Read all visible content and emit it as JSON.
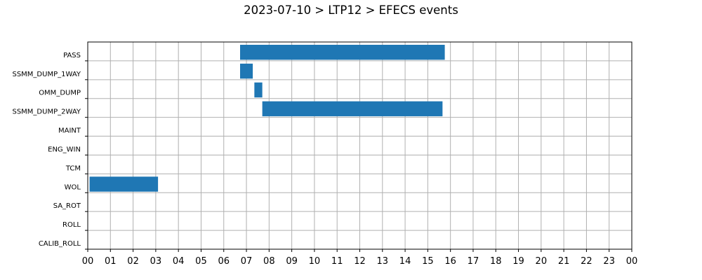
{
  "chart_data": {
    "type": "bar",
    "orientation": "horizontal-timeline",
    "title": "2023-07-10 > LTP12 > EFECS events",
    "categories": [
      "PASS",
      "SSMM_DUMP_1WAY",
      "OMM_DUMP",
      "SSMM_DUMP_2WAY",
      "MAINT",
      "ENG_WIN",
      "TCM",
      "WOL",
      "SA_ROT",
      "ROLL",
      "CALIB_ROLL"
    ],
    "x_ticks": [
      "00",
      "01",
      "02",
      "03",
      "04",
      "05",
      "06",
      "07",
      "08",
      "09",
      "10",
      "11",
      "12",
      "13",
      "14",
      "15",
      "16",
      "17",
      "18",
      "19",
      "20",
      "21",
      "22",
      "23",
      "00"
    ],
    "xlim_hours": [
      0,
      24
    ],
    "grid": true,
    "bar_color": "#1f77b4",
    "series": [
      {
        "events": [
          {
            "category": "PASS",
            "start_hour": 6.72,
            "end_hour": 15.75
          },
          {
            "category": "SSMM_DUMP_1WAY",
            "start_hour": 6.72,
            "end_hour": 7.28
          },
          {
            "category": "OMM_DUMP",
            "start_hour": 7.35,
            "end_hour": 7.7
          },
          {
            "category": "SSMM_DUMP_2WAY",
            "start_hour": 7.7,
            "end_hour": 15.65
          },
          {
            "category": "WOL",
            "start_hour": 0.08,
            "end_hour": 3.1
          }
        ]
      }
    ]
  }
}
